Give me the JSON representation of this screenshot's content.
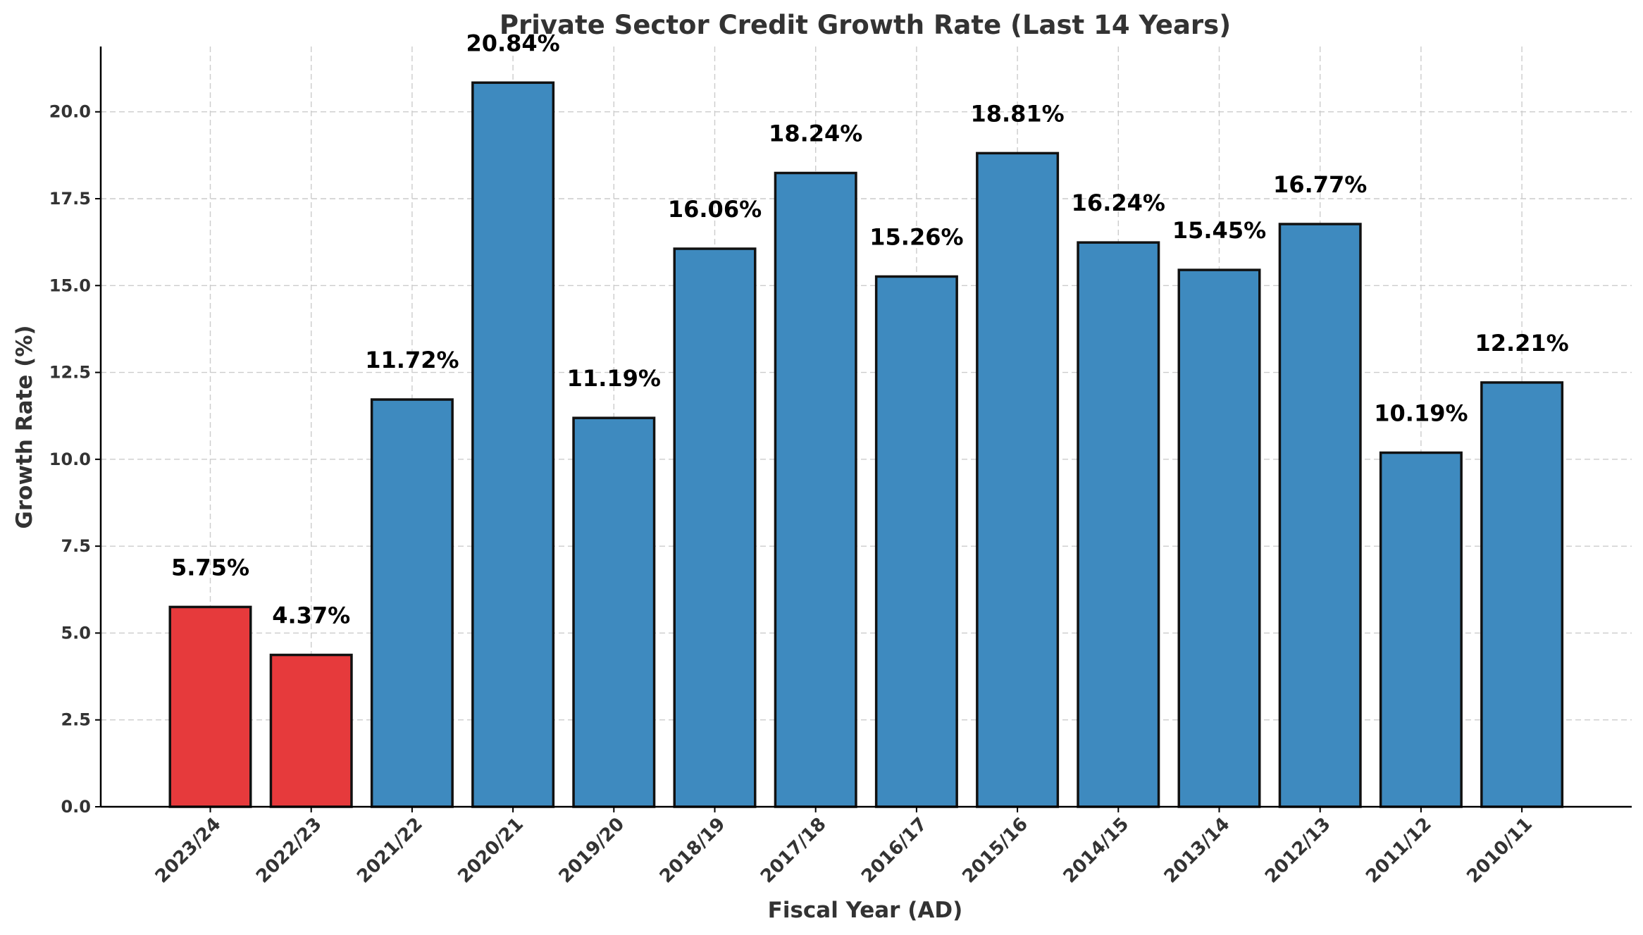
{
  "chart_data": {
    "type": "bar",
    "title": "Private Sector Credit Growth Rate (Last 14 Years)",
    "xlabel": "Fiscal Year (AD)",
    "ylabel": "Growth Rate (%)",
    "categories": [
      "2023/24",
      "2022/23",
      "2021/22",
      "2020/21",
      "2019/20",
      "2018/19",
      "2017/18",
      "2016/17",
      "2015/16",
      "2014/15",
      "2013/14",
      "2012/13",
      "2011/12",
      "2010/11"
    ],
    "values": [
      5.75,
      4.37,
      11.72,
      20.84,
      11.19,
      16.06,
      18.24,
      15.26,
      18.81,
      16.24,
      15.45,
      16.77,
      10.19,
      12.21
    ],
    "data_labels": [
      "5.75%",
      "4.37%",
      "11.72%",
      "20.84%",
      "11.19%",
      "16.06%",
      "18.24%",
      "15.26%",
      "18.81%",
      "16.24%",
      "15.45%",
      "16.77%",
      "10.19%",
      "12.21%"
    ],
    "highlight_categories": [
      "2023/24",
      "2022/23"
    ],
    "colors": {
      "default": "#3e8abf",
      "highlight": "#e63a3c",
      "edge": "#111111"
    },
    "yticks": [
      0.0,
      2.5,
      5.0,
      7.5,
      10.0,
      12.5,
      15.0,
      17.5,
      20.0
    ],
    "ytick_labels": [
      "0.0",
      "2.5",
      "5.0",
      "7.5",
      "10.0",
      "12.5",
      "15.0",
      "17.5",
      "20.0"
    ],
    "ylim": [
      0,
      21.88
    ],
    "grid": true
  }
}
